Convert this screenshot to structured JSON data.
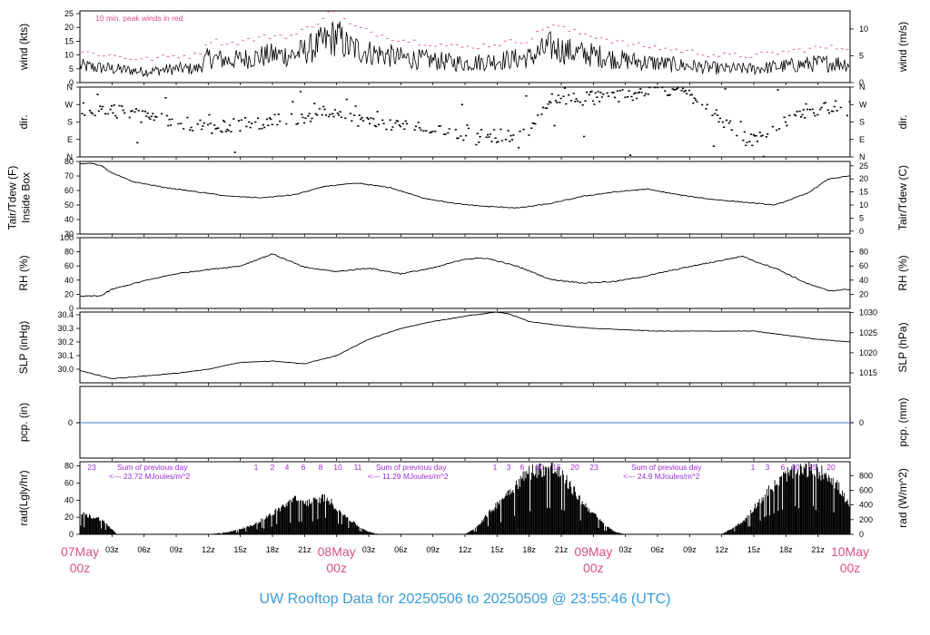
{
  "footer_title": "UW Rooftop Data for 20250506  to  20250509 @ 23:55:46  (UTC)",
  "colors": {
    "axis": "#000000",
    "peak": "#e0507a",
    "date_label": "#e0507a",
    "footer": "#3a9ad9",
    "zero_line": "#4a78c8",
    "annotation": "#9a2be0"
  },
  "time_axis": {
    "start": "2025-05-07T00:00Z",
    "end": "2025-05-10T00:00Z",
    "hour_ticks": [
      "03z",
      "06z",
      "09z",
      "12z",
      "15z",
      "18z",
      "21z",
      "03z",
      "06z",
      "09z",
      "12z",
      "15z",
      "18z",
      "21z",
      "03z",
      "06z",
      "09z",
      "12z",
      "15z",
      "18z",
      "21z"
    ],
    "day_labels": [
      {
        "day": "07May",
        "hour": "00z"
      },
      {
        "day": "08May",
        "hour": "00z"
      },
      {
        "day": "09May",
        "hour": "00z"
      },
      {
        "day": "10May",
        "hour": "00z"
      }
    ]
  },
  "chart_data": [
    {
      "type": "line",
      "panel": "wind",
      "ylabel_left": "wind (kts)",
      "ylabel_right": "wind (m/s)",
      "annotation": "10 min. peak winds in red",
      "ylim": [
        0,
        26
      ],
      "left_ticks": [
        "0",
        "5",
        "10",
        "15",
        "20",
        "25"
      ],
      "right_ticks": [
        "0",
        "5",
        "10"
      ],
      "series": [
        {
          "name": "wind",
          "x_hours": [
            0,
            3,
            6,
            9,
            11,
            12,
            14,
            16,
            18,
            20,
            22,
            24,
            25,
            27,
            30,
            33,
            36,
            39,
            42,
            44,
            46,
            48,
            51,
            54,
            57,
            60,
            63,
            66,
            69,
            72
          ],
          "values": [
            6,
            5,
            4,
            5,
            5,
            9,
            8,
            9,
            10,
            10,
            13,
            17,
            13,
            11,
            9,
            8,
            7,
            8,
            9,
            13,
            11,
            10,
            8,
            7,
            6,
            5,
            5,
            6,
            7,
            7
          ]
        }
      ]
    },
    {
      "type": "scatter",
      "panel": "dir",
      "ylabel_left": "dir.",
      "ylabel_right": "dir.",
      "tick_labels": [
        "N",
        "E",
        "S",
        "W",
        "N"
      ]
    },
    {
      "type": "line",
      "panel": "temperature",
      "ylabel_left": "Tair/Tdew (F)\nInside Box",
      "ylabel_right": "Tair/Tdew (C)",
      "ylim": [
        30,
        80
      ],
      "left_ticks": [
        "30",
        "40",
        "50",
        "60",
        "70",
        "80"
      ],
      "right_ticks": [
        "0",
        "5",
        "10",
        "15",
        "20",
        "25"
      ],
      "series": [
        {
          "name": "Tair",
          "x_hours": [
            0,
            1,
            2,
            3,
            5,
            8,
            11,
            14,
            17,
            20,
            23,
            26,
            29,
            32,
            35,
            38,
            41,
            44,
            47,
            50,
            53,
            56,
            59,
            62,
            65,
            68,
            70,
            72
          ],
          "values": [
            78,
            79,
            77,
            72,
            66,
            62,
            59,
            56,
            55,
            57,
            63,
            65,
            62,
            55,
            51,
            49,
            48,
            51,
            56,
            59,
            61,
            57,
            54,
            52,
            50,
            58,
            68,
            70
          ]
        }
      ]
    },
    {
      "type": "line",
      "panel": "rh",
      "ylabel_left": "RH (%)",
      "ylabel_right": "RH (%)",
      "ylim": [
        0,
        100
      ],
      "left_ticks": [
        "0",
        "20",
        "40",
        "60",
        "80",
        "100"
      ],
      "right_ticks": [
        "20",
        "40",
        "60",
        "80"
      ],
      "series": [
        {
          "name": "RH",
          "x_hours": [
            0,
            2,
            3,
            6,
            9,
            12,
            15,
            18,
            21,
            24,
            27,
            30,
            33,
            36,
            38,
            41,
            44,
            47,
            50,
            53,
            56,
            59,
            62,
            63,
            65,
            68,
            70,
            72
          ],
          "values": [
            17,
            18,
            27,
            39,
            49,
            55,
            60,
            77,
            58,
            52,
            57,
            49,
            57,
            70,
            71,
            59,
            41,
            36,
            38,
            46,
            56,
            65,
            74,
            67,
            57,
            35,
            25,
            27
          ]
        }
      ]
    },
    {
      "type": "line",
      "panel": "slp",
      "ylabel_left": "SLP (inHg)",
      "ylabel_right": "SLP (hPa)",
      "ylim": [
        29.9,
        30.42
      ],
      "left_ticks": [
        "30.0",
        "30.1",
        "30.2",
        "30.3",
        "30.4"
      ],
      "right_ticks": [
        "1015",
        "1020",
        "1025",
        "1030"
      ],
      "series": [
        {
          "name": "SLP",
          "x_hours": [
            0,
            3,
            6,
            9,
            12,
            15,
            18,
            21,
            24,
            27,
            30,
            33,
            36,
            39,
            40,
            42,
            45,
            48,
            51,
            54,
            57,
            60,
            63,
            66,
            69,
            72
          ],
          "values": [
            29.99,
            29.93,
            29.95,
            29.97,
            30.0,
            30.05,
            30.06,
            30.04,
            30.1,
            30.22,
            30.3,
            30.35,
            30.39,
            30.42,
            30.41,
            30.35,
            30.32,
            30.3,
            30.29,
            30.28,
            30.28,
            30.28,
            30.28,
            30.25,
            30.22,
            30.2
          ]
        }
      ]
    },
    {
      "type": "line",
      "panel": "precip",
      "ylabel_left": "pcp. (in)",
      "ylabel_right": "pcp. (mm)",
      "left_ticks": [
        "0"
      ],
      "right_ticks": [
        "0"
      ],
      "series": [
        {
          "name": "pcp",
          "x_hours": [
            0,
            72
          ],
          "values": [
            0,
            0
          ]
        }
      ]
    },
    {
      "type": "area",
      "panel": "radiation",
      "ylabel_left": "rad(Lgly/hr)",
      "ylabel_right": "rad (W/m^2)",
      "ylim": [
        0,
        85
      ],
      "left_ticks": [
        "0",
        "20",
        "40",
        "60",
        "80"
      ],
      "right_ticks": [
        "0",
        "200",
        "400",
        "600",
        "800"
      ],
      "annotations": [
        {
          "line1": "Sum of previous day",
          "line2": "<--- 23.72 MJoules/m^2"
        },
        {
          "line1": "Sum of previous day",
          "line2": "<--- 11.29 MJoules/m^2"
        },
        {
          "line1": "Sum of previous day",
          "line2": "<--- 24.9 MJoules/m^2"
        }
      ],
      "hour_labels": [
        [
          "23"
        ],
        [
          "1",
          "2",
          "4",
          "6",
          "8",
          "10",
          "11"
        ],
        [
          "1",
          "3",
          "6",
          "10",
          "15",
          "20",
          "23"
        ],
        [
          "1",
          "3",
          "6",
          "10",
          "15",
          "20"
        ]
      ],
      "series": [
        {
          "name": "radiation",
          "x_hours": [
            0,
            2,
            3.5,
            12,
            14,
            16,
            18,
            20,
            21,
            22,
            23,
            24,
            25,
            26,
            27,
            28,
            36,
            37,
            38,
            40,
            42,
            44,
            45,
            46,
            47,
            49,
            50,
            51,
            52,
            60,
            62,
            64,
            66,
            68,
            70,
            71,
            72
          ],
          "values": [
            25,
            18,
            0,
            0,
            3,
            10,
            25,
            42,
            38,
            40,
            45,
            32,
            20,
            10,
            3,
            0,
            0,
            8,
            22,
            50,
            75,
            80,
            72,
            55,
            38,
            12,
            3,
            0,
            0,
            0,
            15,
            48,
            72,
            78,
            72,
            55,
            32
          ]
        }
      ]
    }
  ]
}
